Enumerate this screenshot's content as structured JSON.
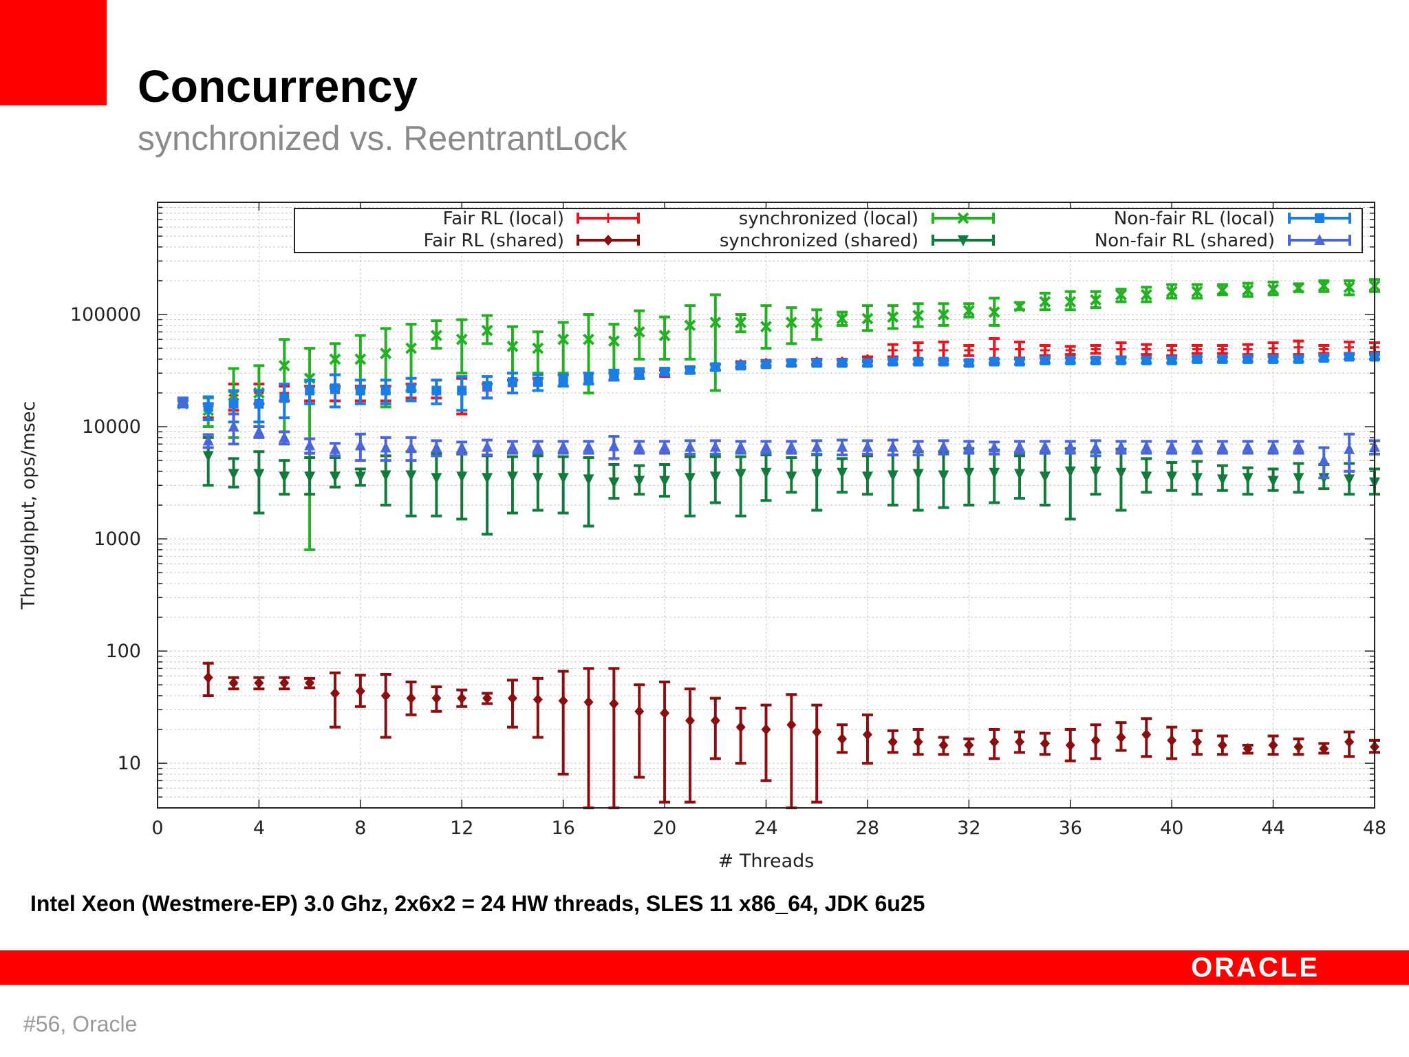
{
  "slide": {
    "title": "Concurrency",
    "subtitle": "synchronized vs. ReentrantLock",
    "caption": "Intel Xeon (Westmere-EP) 3.0 Ghz, 2x6x2 = 24 HW threads, SLES 11 x86_64, JDK 6u25",
    "brand": "ORACLE",
    "slide_number": "#56, Oracle",
    "accent_color": "#ff0000"
  },
  "chart_data": {
    "type": "scatter",
    "error_bars": true,
    "xlabel": "# Threads",
    "ylabel": "Throughput, ops/msec",
    "xlim": [
      0,
      48
    ],
    "ylim": [
      4,
      1000000
    ],
    "y_scale": "log",
    "x_ticks": [
      0,
      4,
      8,
      12,
      16,
      20,
      24,
      28,
      32,
      36,
      40,
      44,
      48
    ],
    "y_ticks": [
      10,
      100,
      1000,
      10000,
      100000
    ],
    "y_tick_labels": [
      "10",
      "100",
      "1000",
      "10000",
      "100000"
    ],
    "grid": true,
    "legend_position": "top",
    "series": [
      {
        "name": "Fair RL (local)",
        "color": "#e5161f",
        "marker": "plus",
        "x": [
          1,
          2,
          3,
          4,
          5,
          6,
          7,
          8,
          9,
          10,
          11,
          12,
          13,
          14,
          15,
          16,
          17,
          18,
          19,
          20,
          21,
          22,
          23,
          24,
          25,
          26,
          27,
          28,
          29,
          30,
          31,
          32,
          33,
          34,
          35,
          36,
          37,
          38,
          39,
          40,
          41,
          42,
          43,
          44,
          45,
          46,
          47,
          48
        ],
        "y": [
          16500,
          14000,
          19000,
          20000,
          20000,
          20000,
          20000,
          20000,
          20000,
          21000,
          22000,
          20000,
          21000,
          23000,
          24000,
          26000,
          27000,
          28000,
          29000,
          30000,
          32000,
          34000,
          36000,
          37000,
          37000,
          38000,
          38000,
          40000,
          48000,
          48000,
          48000,
          48000,
          49000,
          49000,
          48000,
          48000,
          49000,
          49000,
          49000,
          48000,
          49000,
          49000,
          49000,
          50000,
          51000,
          49000,
          51000,
          51000
        ],
        "err": [
          1500,
          2000,
          5000,
          4000,
          3000,
          3000,
          3000,
          3000,
          3000,
          3000,
          4000,
          7000,
          3000,
          3000,
          3000,
          3000,
          3000,
          2000,
          2000,
          2000,
          2000,
          2000,
          2000,
          2000,
          2000,
          2000,
          2000,
          2000,
          6000,
          8000,
          9000,
          5000,
          12000,
          8000,
          5000,
          4000,
          4000,
          7000,
          5000,
          5000,
          4000,
          4000,
          5000,
          6000,
          7000,
          4000,
          6000,
          5000
        ]
      },
      {
        "name": "Fair RL (shared)",
        "color": "#8b0e0e",
        "marker": "diamond",
        "x": [
          2,
          3,
          4,
          5,
          6,
          7,
          8,
          9,
          10,
          11,
          12,
          13,
          14,
          15,
          16,
          17,
          18,
          19,
          20,
          21,
          22,
          23,
          24,
          25,
          26,
          27,
          28,
          29,
          30,
          31,
          32,
          33,
          34,
          35,
          36,
          37,
          38,
          39,
          40,
          41,
          42,
          43,
          44,
          45,
          46,
          47,
          48
        ],
        "y": [
          58,
          52,
          52,
          52,
          52,
          42,
          44,
          40,
          38,
          38,
          38,
          38,
          38,
          37,
          36,
          35,
          34,
          29,
          28,
          24,
          24,
          21,
          20,
          22,
          19,
          16.5,
          18,
          15.5,
          15.5,
          14.5,
          14.5,
          15.5,
          15.5,
          15,
          14.5,
          16,
          17,
          18,
          16,
          15.5,
          14.5,
          13.5,
          14.5,
          14,
          13.5,
          15.5,
          14
        ],
        "lo": [
          40,
          46,
          46,
          46,
          47,
          21,
          32,
          17,
          27,
          29,
          32,
          34,
          21,
          17,
          8,
          4,
          4,
          7.5,
          4.5,
          4.5,
          11,
          10,
          7,
          4,
          4.5,
          12.5,
          10,
          12.5,
          12,
          12,
          12,
          11,
          12.5,
          12,
          10.5,
          11,
          13,
          11.5,
          11,
          12,
          12,
          12.3,
          12,
          12,
          12.3,
          11.5,
          12.5
        ],
        "hi": [
          78,
          58,
          58,
          58,
          57,
          64,
          61,
          62,
          53,
          48,
          45,
          42,
          55,
          57,
          66,
          70,
          70,
          50,
          53,
          46,
          38,
          31,
          33,
          41,
          33,
          22,
          27,
          19.5,
          20,
          17,
          16.5,
          20,
          19,
          18.5,
          20,
          22,
          23,
          25,
          21,
          19.5,
          17.5,
          14.5,
          17.5,
          16.5,
          15,
          19,
          16
        ]
      },
      {
        "name": "synchronized (local)",
        "color": "#23b022",
        "marker": "x",
        "x": [
          1,
          2,
          3,
          4,
          5,
          6,
          7,
          8,
          9,
          10,
          11,
          12,
          13,
          14,
          15,
          16,
          17,
          18,
          19,
          20,
          21,
          22,
          23,
          24,
          25,
          26,
          27,
          28,
          29,
          30,
          31,
          32,
          33,
          34,
          35,
          36,
          37,
          38,
          39,
          40,
          41,
          42,
          43,
          44,
          45,
          46,
          47,
          48
        ],
        "y": [
          16000,
          14000,
          19000,
          20000,
          35000,
          27000,
          40000,
          40000,
          45000,
          50000,
          65000,
          60000,
          72000,
          52000,
          50000,
          60000,
          60000,
          58000,
          70000,
          65000,
          80000,
          85000,
          85000,
          78000,
          85000,
          85000,
          92000,
          92000,
          95000,
          98000,
          100000,
          108000,
          105000,
          118000,
          130000,
          130000,
          135000,
          150000,
          150000,
          160000,
          160000,
          165000,
          165000,
          168000,
          172000,
          180000,
          175000,
          180000
        ],
        "lo": [
          15000,
          10000,
          8000,
          10000,
          9000,
          800,
          22000,
          22000,
          15000,
          21000,
          50000,
          30000,
          55000,
          30000,
          30000,
          30000,
          20000,
          30000,
          40000,
          40000,
          40000,
          21000,
          70000,
          50000,
          55000,
          60000,
          80000,
          72000,
          75000,
          78000,
          80000,
          95000,
          80000,
          110000,
          110000,
          110000,
          115000,
          130000,
          130000,
          140000,
          140000,
          150000,
          145000,
          150000,
          160000,
          160000,
          150000,
          160000
        ],
        "hi": [
          17000,
          18000,
          33000,
          35000,
          60000,
          50000,
          55000,
          65000,
          75000,
          82000,
          88000,
          90000,
          98000,
          78000,
          70000,
          85000,
          100000,
          82000,
          108000,
          95000,
          120000,
          150000,
          100000,
          120000,
          115000,
          110000,
          105000,
          120000,
          120000,
          125000,
          125000,
          125000,
          140000,
          128000,
          155000,
          160000,
          160000,
          168000,
          175000,
          185000,
          185000,
          185000,
          190000,
          195000,
          188000,
          200000,
          200000,
          205000
        ]
      },
      {
        "name": "synchronized (shared)",
        "color": "#147a3c",
        "marker": "triangle-down",
        "x": [
          2,
          3,
          4,
          5,
          6,
          7,
          8,
          9,
          10,
          11,
          12,
          13,
          14,
          15,
          16,
          17,
          18,
          19,
          20,
          21,
          22,
          23,
          24,
          25,
          26,
          27,
          28,
          29,
          30,
          31,
          32,
          33,
          34,
          35,
          36,
          37,
          38,
          39,
          40,
          41,
          42,
          43,
          44,
          45,
          46,
          47,
          48
        ],
        "y": [
          5500,
          3800,
          3800,
          3600,
          3600,
          3600,
          3600,
          3700,
          3700,
          3500,
          3600,
          3500,
          3600,
          3500,
          3500,
          3400,
          3200,
          3300,
          3300,
          3500,
          3600,
          3800,
          3900,
          3600,
          3800,
          3900,
          3600,
          3700,
          3800,
          3700,
          3900,
          3900,
          3800,
          3600,
          4000,
          4000,
          3900,
          3600,
          3600,
          3500,
          3400,
          3500,
          3300,
          3500,
          3500,
          3400,
          3200
        ],
        "lo": [
          3000,
          2900,
          1700,
          2500,
          2500,
          2900,
          3000,
          2000,
          1600,
          1600,
          1500,
          1100,
          1700,
          1800,
          1700,
          1300,
          2300,
          2500,
          2400,
          1600,
          2100,
          1600,
          2200,
          2600,
          1800,
          2600,
          2500,
          2000,
          1800,
          1900,
          2000,
          2100,
          2300,
          2000,
          1500,
          2500,
          1800,
          2600,
          2700,
          2500,
          2700,
          2500,
          2700,
          2600,
          2800,
          2500,
          2500
        ],
        "hi": [
          8000,
          5200,
          6000,
          5000,
          5300,
          5300,
          4200,
          5500,
          6000,
          5800,
          5800,
          5500,
          5400,
          5500,
          5400,
          5300,
          4600,
          4500,
          4600,
          5400,
          5400,
          5400,
          5600,
          5300,
          5600,
          5200,
          5500,
          5600,
          6000,
          6000,
          6400,
          6200,
          5500,
          5800,
          6400,
          5900,
          6300,
          5200,
          4800,
          4900,
          4500,
          4300,
          4200,
          4700,
          4600,
          4700,
          4200
        ]
      },
      {
        "name": "Non-fair RL (local)",
        "color": "#1a7de6",
        "marker": "square",
        "x": [
          1,
          2,
          3,
          4,
          5,
          6,
          7,
          8,
          9,
          10,
          11,
          12,
          13,
          14,
          15,
          16,
          17,
          18,
          19,
          20,
          21,
          22,
          23,
          24,
          25,
          26,
          27,
          28,
          29,
          30,
          31,
          32,
          33,
          34,
          35,
          36,
          37,
          38,
          39,
          40,
          41,
          42,
          43,
          44,
          45,
          46,
          47,
          48
        ],
        "y": [
          16500,
          15000,
          16000,
          16000,
          18000,
          21000,
          22000,
          21000,
          21000,
          22000,
          21000,
          21000,
          23000,
          25000,
          25000,
          26000,
          27000,
          29000,
          30000,
          31000,
          32000,
          34000,
          35000,
          36000,
          37000,
          37000,
          37000,
          37000,
          38000,
          38000,
          38000,
          37000,
          38000,
          38000,
          39000,
          39000,
          39000,
          39000,
          39000,
          39000,
          40000,
          40000,
          40000,
          40000,
          40000,
          41000,
          42000,
          42000
        ],
        "err": [
          1500,
          3500,
          5000,
          5000,
          6000,
          5000,
          7000,
          5000,
          5000,
          5000,
          5000,
          7000,
          5000,
          5000,
          4000,
          3000,
          3000,
          3000,
          3000,
          2000,
          2000,
          2000,
          2000,
          2000,
          2000,
          2000,
          2000,
          2000,
          2000,
          2000,
          2000,
          2000,
          2000,
          2000,
          2000,
          2000,
          2000,
          2000,
          2000,
          2000,
          2000,
          2000,
          2000,
          2000,
          2000,
          2000,
          2000,
          2000
        ]
      },
      {
        "name": "Non-fair RL (shared)",
        "color": "#4a66d8",
        "marker": "triangle-up",
        "x": [
          1,
          2,
          3,
          4,
          5,
          6,
          7,
          8,
          9,
          10,
          11,
          12,
          13,
          14,
          15,
          16,
          17,
          18,
          19,
          20,
          21,
          22,
          23,
          24,
          25,
          26,
          27,
          28,
          29,
          30,
          31,
          32,
          33,
          34,
          35,
          36,
          37,
          38,
          39,
          40,
          41,
          42,
          43,
          44,
          45,
          46,
          47,
          48
        ],
        "y": [
          16500,
          7500,
          10000,
          9000,
          8000,
          6800,
          6300,
          6800,
          6500,
          6500,
          6500,
          6500,
          6600,
          6600,
          6600,
          6600,
          6600,
          6700,
          6600,
          6600,
          6600,
          6600,
          6600,
          6600,
          6600,
          6600,
          6600,
          6600,
          6600,
          6500,
          6600,
          6600,
          6500,
          6600,
          6600,
          6600,
          6500,
          6600,
          6600,
          6600,
          6600,
          6600,
          6600,
          6600,
          6600,
          5000,
          6300,
          6600
        ],
        "err": [
          1000,
          1000,
          3000,
          1000,
          1000,
          1000,
          800,
          1800,
          1500,
          1500,
          1000,
          800,
          1000,
          800,
          800,
          800,
          800,
          1500,
          800,
          800,
          900,
          900,
          800,
          800,
          800,
          900,
          1000,
          900,
          1000,
          900,
          900,
          800,
          800,
          800,
          800,
          800,
          1000,
          800,
          800,
          800,
          800,
          800,
          800,
          800,
          800,
          1500,
          2300,
          900
        ]
      }
    ]
  }
}
